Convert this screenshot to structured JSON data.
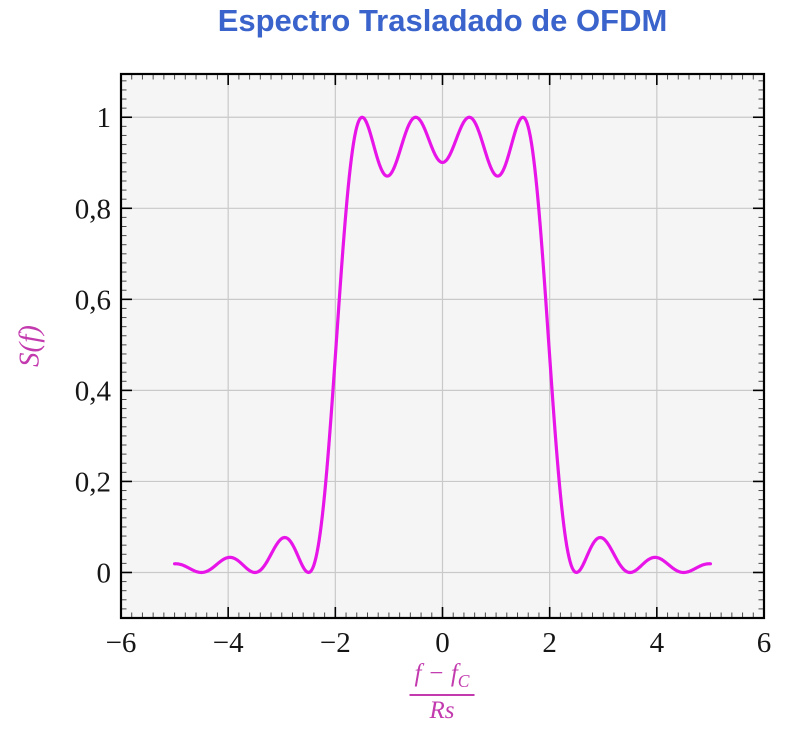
{
  "title": {
    "text": "Espectro Trasladado de OFDM",
    "color": "#3a64cc"
  },
  "labels": {
    "ylabel": "S(f)",
    "xlabel_num_main": "f − f",
    "xlabel_num_sub": "C",
    "xlabel_den": "Rs",
    "color": "#c23aae"
  },
  "axes": {
    "xlim": [
      -6,
      6
    ],
    "ylim": [
      -0.1,
      1.095
    ],
    "x_major_ticks": [
      -6,
      -4,
      -2,
      0,
      2,
      4,
      6
    ],
    "x_tick_labels": [
      "−6",
      "−4",
      "−2",
      "0",
      "2",
      "4",
      "6"
    ],
    "x_minor_step": 0.2,
    "y_major_ticks": [
      0,
      0.2,
      0.4,
      0.6,
      0.8,
      1
    ],
    "y_tick_labels": [
      "0",
      "0,2",
      "0,4",
      "0,6",
      "0,8",
      "1"
    ],
    "y_minor_step": 0.02,
    "grid": true,
    "plot_background": "#f5f5f6",
    "grid_color": "#c9c9c9",
    "frame_color": "#000000",
    "major_tick_color": "#000000",
    "minor_tick_color": "#4a4a4a"
  },
  "chart_data": {
    "type": "line",
    "title": "Espectro Trasladado de OFDM",
    "xlabel": "(f − f_C) / Rs",
    "ylabel": "S(f)",
    "xlim": [
      -6,
      6
    ],
    "ylim": [
      -0.1,
      1.095
    ],
    "grid": true,
    "legend": "none",
    "series": [
      {
        "name": "S(f)",
        "color": "#e815e8",
        "stroke_width": 3.2,
        "model": {
          "kind": "sum_sinc_squared",
          "description": "S(f) = sum over subcarriers k of sinc^2(f - k)",
          "subcarrier_offsets": [
            -1.5,
            -0.5,
            0.5,
            1.5
          ]
        },
        "x_range": [
          -5,
          5
        ],
        "sample_step": 0.02,
        "points_coarse": {
          "x": [
            -5,
            -4.75,
            -4.5,
            -4.25,
            -4,
            -3.75,
            -3.5,
            -3.25,
            -3,
            -2.75,
            -2.5,
            -2.25,
            -2,
            -1.75,
            -1.5,
            -1.25,
            -1,
            -0.75,
            -0.5,
            -0.25,
            0,
            0.25,
            0.5,
            0.75,
            1,
            1.25,
            1.5,
            1.75,
            2,
            2.25,
            2.5,
            2.75,
            3,
            3.25,
            3.5,
            3.75,
            4,
            4.25,
            4.5,
            4.75,
            5
          ],
          "y": [
            0.019,
            0.0107,
            0,
            0.0141,
            0.0328,
            0.0194,
            0,
            0.0291,
            0.0745,
            0.05,
            0,
            0.1169,
            0.4748,
            0.8578,
            1,
            0.9239,
            0.8718,
            0.9431,
            1,
            0.9496,
            0.9006,
            0.9496,
            1,
            0.9431,
            0.8718,
            0.9239,
            1,
            0.8578,
            0.4748,
            0.1169,
            0,
            0.05,
            0.0745,
            0.0291,
            0,
            0.0194,
            0.0328,
            0.0141,
            0,
            0.0107,
            0.019
          ]
        },
        "peaks_at_x": [
          -1.5,
          -0.5,
          0.5,
          1.5
        ],
        "peak_value": 1.0,
        "dip_values": {
          "x0": 0.9006,
          "x_pm1": 0.8718
        }
      }
    ]
  }
}
